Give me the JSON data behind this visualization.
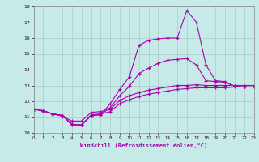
{
  "title": "",
  "xlabel": "Windchill (Refroidissement éolien,°C)",
  "xlim": [
    0,
    23
  ],
  "ylim": [
    10,
    18
  ],
  "xticks": [
    0,
    1,
    2,
    3,
    4,
    5,
    6,
    7,
    8,
    9,
    10,
    11,
    12,
    13,
    14,
    15,
    16,
    17,
    18,
    19,
    20,
    21,
    22,
    23
  ],
  "yticks": [
    10,
    11,
    12,
    13,
    14,
    15,
    16,
    17,
    18
  ],
  "bg_color": "#c5eae8",
  "line_color": "#aa00aa",
  "grid_color": "#b0c8c8",
  "line_x": [
    [
      0,
      1,
      2,
      3,
      4,
      5,
      6,
      7,
      8,
      9,
      10,
      11,
      12,
      13,
      14,
      15,
      16,
      17,
      18,
      19,
      20,
      21,
      22,
      23
    ],
    [
      0,
      1,
      2,
      3,
      4,
      5,
      6,
      7,
      8,
      9,
      10,
      11,
      12,
      13,
      14,
      15,
      16,
      17,
      18,
      19,
      20,
      21,
      22,
      23
    ],
    [
      0,
      1,
      2,
      3,
      4,
      5,
      6,
      7,
      8,
      9,
      10,
      11,
      12,
      13,
      14,
      15,
      16,
      17,
      18,
      19,
      20,
      21,
      22,
      23
    ],
    [
      0,
      1,
      2,
      3,
      4,
      5,
      6,
      7,
      8,
      9,
      10,
      11,
      12,
      13,
      14,
      15,
      16,
      17,
      18,
      19,
      20,
      21,
      22,
      23
    ]
  ],
  "line_y": [
    [
      11.5,
      11.4,
      11.2,
      11.1,
      10.5,
      10.5,
      11.15,
      11.2,
      11.35,
      11.85,
      12.1,
      12.3,
      12.45,
      12.55,
      12.65,
      12.75,
      12.8,
      12.85,
      12.85,
      12.85,
      12.85,
      12.9,
      12.9,
      12.9
    ],
    [
      11.5,
      11.4,
      11.2,
      11.05,
      10.75,
      10.75,
      11.3,
      11.35,
      11.5,
      12.05,
      12.35,
      12.55,
      12.7,
      12.8,
      12.9,
      13.0,
      13.0,
      13.05,
      13.0,
      13.0,
      13.0,
      13.0,
      13.0,
      13.0
    ],
    [
      11.5,
      11.4,
      11.2,
      11.1,
      10.55,
      10.5,
      11.1,
      11.15,
      11.85,
      12.75,
      13.55,
      15.55,
      15.85,
      15.95,
      16.0,
      16.0,
      17.75,
      17.0,
      14.3,
      13.3,
      13.25,
      12.95,
      12.9,
      12.9
    ],
    [
      11.5,
      11.4,
      11.2,
      11.1,
      10.55,
      10.5,
      11.1,
      11.15,
      11.6,
      12.35,
      12.95,
      13.75,
      14.1,
      14.4,
      14.6,
      14.65,
      14.7,
      14.3,
      13.3,
      13.25,
      13.2,
      12.95,
      12.9,
      12.9
    ]
  ]
}
